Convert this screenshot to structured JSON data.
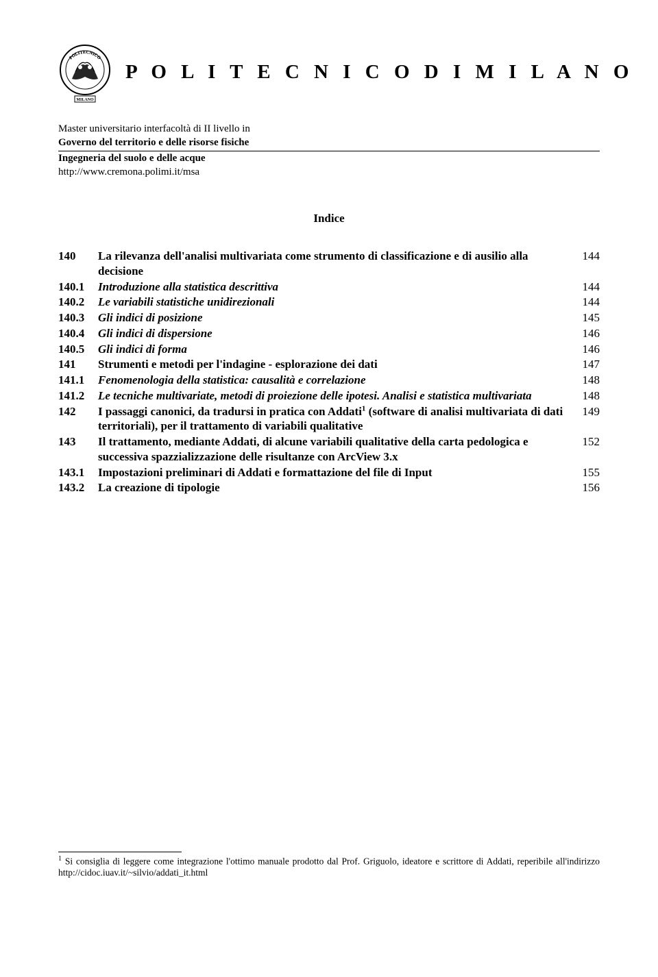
{
  "header": {
    "university": "P O L I T E C N I C O   D I   M I L A N O",
    "program_line1": "Master universitario interfacoltà di II livello in",
    "program_line2": "Governo del territorio e delle risorse fisiche",
    "program_line3": "Ingegneria del suolo e delle acque",
    "url": "http://www.cremona.polimi.it/msa",
    "logo_label_top": "POLITECNICO",
    "logo_label_bottom": "MILANO"
  },
  "indice_title": "Indice",
  "toc": [
    {
      "num": "140",
      "title": "La rilevanza dell'analisi multivariata come strumento di classificazione e di ausilio alla decisione",
      "page": "144",
      "style": "bold"
    },
    {
      "num": "140.1",
      "title": "Introduzione alla statistica descrittiva",
      "page": "144",
      "style": "italic"
    },
    {
      "num": "140.2",
      "title": "Le variabili statistiche unidirezionali",
      "page": "144",
      "style": "italic"
    },
    {
      "num": "140.3",
      "title": "Gli indici di posizione",
      "page": "145",
      "style": "italic"
    },
    {
      "num": "140.4",
      "title": "Gli indici di dispersione",
      "page": "146",
      "style": "italic"
    },
    {
      "num": "140.5",
      "title": "Gli indici di forma",
      "page": "146",
      "style": "italic"
    },
    {
      "num": "141",
      "title": "Strumenti e metodi per l'indagine - esplorazione dei dati",
      "page": "147",
      "style": "bold"
    },
    {
      "num": "141.1",
      "title": "Fenomenologia della statistica: causalità e correlazione",
      "page": "148",
      "style": "italic"
    },
    {
      "num": "141.2",
      "title": "Le tecniche multivariate, metodi di proiezione delle ipotesi. Analisi e statistica multivariata",
      "page": "148",
      "style": "italic"
    },
    {
      "num": "142",
      "title": "I passaggi canonici, da tradursi in pratica con Addati¹ (software di analisi multivariata di dati territoriali), per il trattamento di variabili qualitative",
      "page": "149",
      "style": "bold",
      "has_sup": true
    },
    {
      "num": "143",
      "title": "Il trattamento, mediante Addati, di alcune variabili qualitative della carta pedologica e successiva spazzializzazione delle risultanze con ArcView 3.x",
      "page": "152",
      "style": "bold"
    },
    {
      "num": "143.1",
      "title": "Impostazioni preliminari di Addati e formattazione del file di Input",
      "page": "155",
      "style": "bold"
    },
    {
      "num": "143.2",
      "title": "La creazione di tipologie",
      "page": "156",
      "style": "bold"
    }
  ],
  "footnote": {
    "marker": "1",
    "text": "Si consiglia di leggere come integrazione l'ottimo manuale prodotto dal Prof. Griguolo, ideatore e scrittore di Addati, reperibile all'indirizzo http://cidoc.iuav.it/~silvio/addati_it.html"
  },
  "colors": {
    "text": "#000000",
    "background": "#ffffff"
  }
}
